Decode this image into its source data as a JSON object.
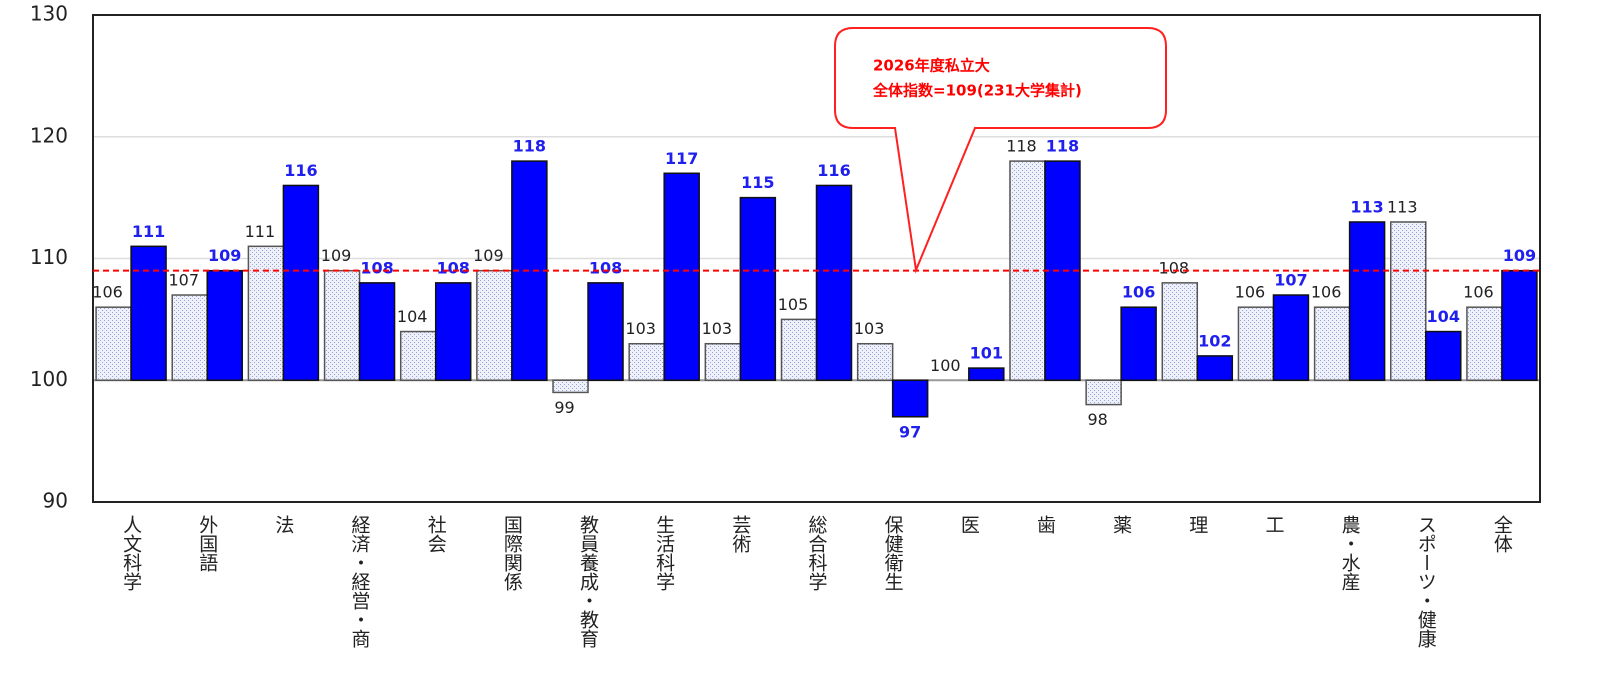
{
  "chart_data": {
    "type": "bar",
    "categories": [
      "人文科学",
      "外国語",
      "法",
      "経済・経営・商",
      "社会",
      "国際関係",
      "教員養成・教育",
      "生活科学",
      "芸術",
      "総合科学",
      "保健衛生",
      "医",
      "歯",
      "薬",
      "理",
      "工",
      "農・水産",
      "スポーツ・健康",
      "全体"
    ],
    "series": [
      {
        "color": "#dfe3f5",
        "values": [
          106,
          107,
          111,
          109,
          104,
          109,
          99,
          103,
          103,
          105,
          103,
          100,
          118,
          98,
          108,
          106,
          106,
          113,
          106
        ]
      },
      {
        "color": "#0000ff",
        "values": [
          111,
          109,
          116,
          108,
          108,
          118,
          108,
          117,
          115,
          116,
          97,
          101,
          118,
          106,
          102,
          107,
          113,
          104,
          109
        ]
      }
    ],
    "bar_base": 100,
    "ylim": [
      90,
      130
    ],
    "yticks": [
      90,
      100,
      110,
      120,
      130
    ],
    "grid": true,
    "reference_line": {
      "value": 109,
      "color": "#ff0000"
    },
    "annotation": [
      "2026年度私立大",
      "全体指数=109(231大学集計)"
    ]
  }
}
